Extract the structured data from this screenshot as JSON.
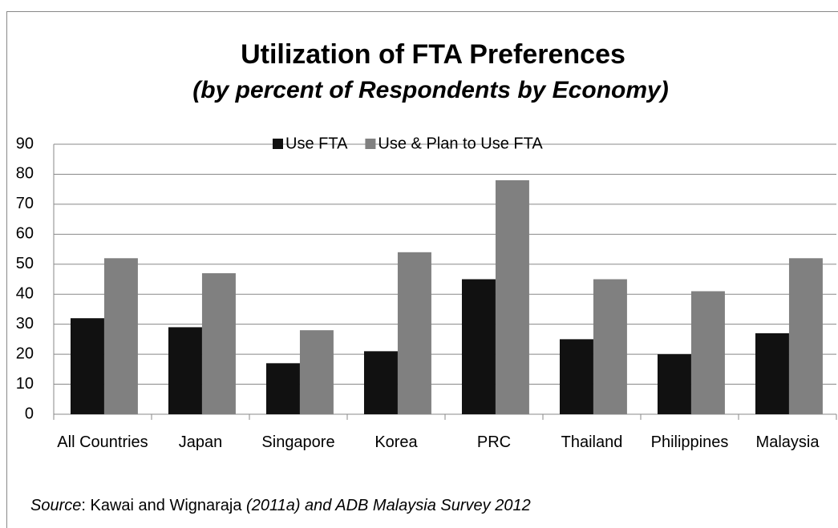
{
  "chart_data": {
    "type": "bar",
    "title": "Utilization of FTA Preferences",
    "subtitle": "(by percent of Respondents by Economy)",
    "categories": [
      "All Countries",
      "Japan",
      "Singapore",
      "Korea",
      "PRC",
      "Thailand",
      "Philippines",
      "Malaysia"
    ],
    "series": [
      {
        "name": "Use FTA",
        "color": "#111111",
        "values": [
          32,
          29,
          17,
          21,
          45,
          25,
          20,
          27
        ]
      },
      {
        "name": "Use & Plan to Use FTA",
        "color": "#808080",
        "values": [
          52,
          47,
          28,
          54,
          78,
          45,
          41,
          52
        ]
      }
    ],
    "ylim": [
      0,
      90
    ],
    "yticks": [
      0,
      10,
      20,
      30,
      40,
      50,
      60,
      70,
      80,
      90
    ],
    "grid": true,
    "legend": "top",
    "source": [
      {
        "text": "Source",
        "italic": true
      },
      {
        "text": ": Kawai and Wignaraja ",
        "italic": false
      },
      {
        "text": "(2011a) and ADB Malaysia Survey 2012",
        "italic": true
      }
    ]
  }
}
